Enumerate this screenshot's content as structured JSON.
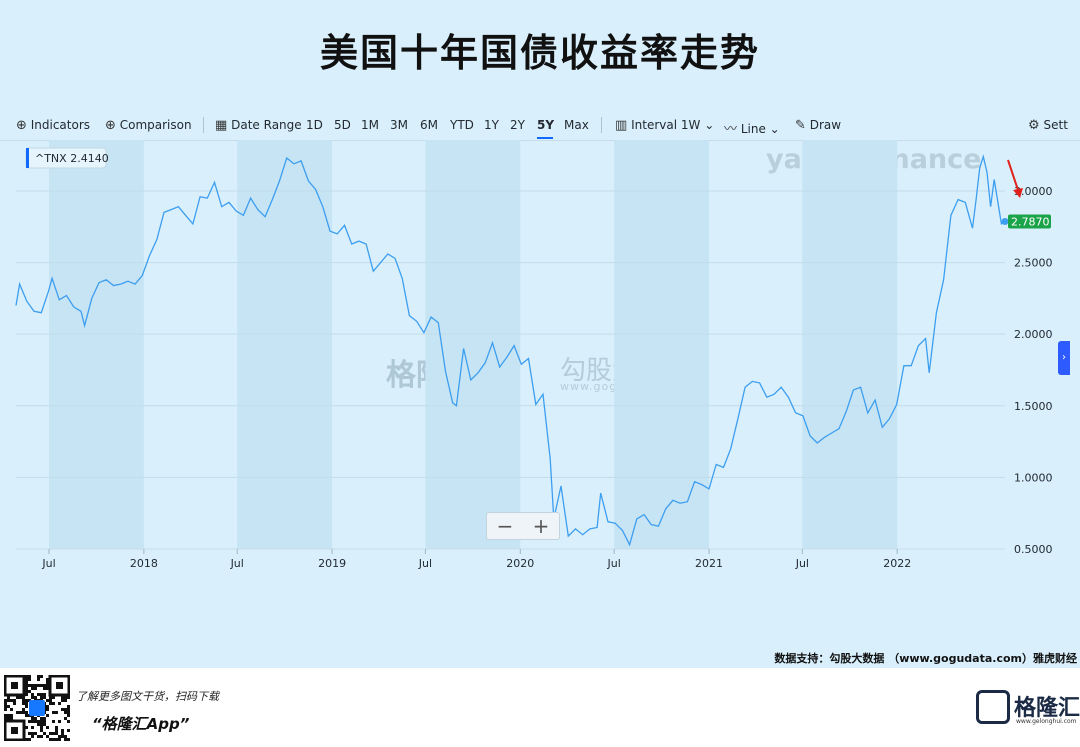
{
  "page": {
    "title": "美国十年国债收益率走势",
    "source_note": "数据支持：勾股大数据 （www.gogudata.com）雅虎财经",
    "promo_line1": "了解更多图文干货，扫码下载",
    "promo_line2": "“格隆汇App”",
    "logo_text": "格隆汇",
    "logo_url": "www.gelonghui.com",
    "watermark_gogu_left": "格隆汇",
    "watermark_gogu_right": "勾股大数据",
    "watermark_gogu_url": "www.gogudata.com",
    "watermark_yahoo": "yahoo!finance"
  },
  "toolbar": {
    "indicators": "Indicators",
    "comparison": "Comparison",
    "date_range": "Date Range",
    "ranges": [
      "1D",
      "5D",
      "1M",
      "3M",
      "6M",
      "YTD",
      "1Y",
      "2Y",
      "5Y",
      "Max"
    ],
    "active_range": "5Y",
    "interval": "Interval",
    "interval_value": "1W",
    "line": "Line",
    "draw": "Draw",
    "settings": "Sett"
  },
  "colors": {
    "background": "#d9f0fc",
    "line": "#3d9ef0",
    "band": "#c6e4f4",
    "last_price_badge": "#1ba34a",
    "arrow": "#e0201b",
    "ticker_marker": "#0f69ff"
  },
  "chart_data": {
    "type": "line",
    "title": "美国十年国债收益率走势",
    "ticker_label": "^TNX 2.4140",
    "last_price_label": "2.7870",
    "xlabel": "",
    "ylabel": "",
    "ylim": [
      0.5,
      3.3
    ],
    "y_ticks": [
      "0.5000",
      "1.0000",
      "1.5000",
      "2.0000",
      "2.5000",
      "3.0000"
    ],
    "x_tick_labels": [
      {
        "label": "Jul",
        "date": "2017-07-01"
      },
      {
        "label": "2018",
        "date": "2018-01-01"
      },
      {
        "label": "Jul",
        "date": "2018-07-01"
      },
      {
        "label": "2019",
        "date": "2019-01-01"
      },
      {
        "label": "Jul",
        "date": "2019-07-01"
      },
      {
        "label": "2020",
        "date": "2020-01-01"
      },
      {
        "label": "Jul",
        "date": "2020-07-01"
      },
      {
        "label": "2021",
        "date": "2021-01-01"
      },
      {
        "label": "Jul",
        "date": "2021-07-01"
      },
      {
        "label": "2022",
        "date": "2022-01-01"
      }
    ],
    "grid": true,
    "series": [
      {
        "points": [
          [
            "2017-04-28",
            2.2
          ],
          [
            "2017-05-05",
            2.35
          ],
          [
            "2017-05-19",
            2.23
          ],
          [
            "2017-06-02",
            2.16
          ],
          [
            "2017-06-16",
            2.15
          ],
          [
            "2017-06-30",
            2.3
          ],
          [
            "2017-07-07",
            2.39
          ],
          [
            "2017-07-21",
            2.24
          ],
          [
            "2017-08-04",
            2.27
          ],
          [
            "2017-08-18",
            2.19
          ],
          [
            "2017-09-01",
            2.16
          ],
          [
            "2017-09-08",
            2.06
          ],
          [
            "2017-09-22",
            2.25
          ],
          [
            "2017-10-06",
            2.36
          ],
          [
            "2017-10-20",
            2.38
          ],
          [
            "2017-11-03",
            2.34
          ],
          [
            "2017-11-17",
            2.35
          ],
          [
            "2017-12-01",
            2.37
          ],
          [
            "2017-12-15",
            2.35
          ],
          [
            "2017-12-29",
            2.41
          ],
          [
            "2018-01-12",
            2.55
          ],
          [
            "2018-01-26",
            2.66
          ],
          [
            "2018-02-09",
            2.85
          ],
          [
            "2018-02-23",
            2.87
          ],
          [
            "2018-03-09",
            2.89
          ],
          [
            "2018-03-23",
            2.83
          ],
          [
            "2018-04-06",
            2.77
          ],
          [
            "2018-04-20",
            2.96
          ],
          [
            "2018-05-04",
            2.95
          ],
          [
            "2018-05-18",
            3.06
          ],
          [
            "2018-06-01",
            2.89
          ],
          [
            "2018-06-15",
            2.92
          ],
          [
            "2018-06-29",
            2.86
          ],
          [
            "2018-07-13",
            2.83
          ],
          [
            "2018-07-27",
            2.95
          ],
          [
            "2018-08-10",
            2.87
          ],
          [
            "2018-08-24",
            2.82
          ],
          [
            "2018-09-07",
            2.94
          ],
          [
            "2018-09-21",
            3.07
          ],
          [
            "2018-10-05",
            3.23
          ],
          [
            "2018-10-19",
            3.19
          ],
          [
            "2018-11-02",
            3.21
          ],
          [
            "2018-11-16",
            3.07
          ],
          [
            "2018-11-30",
            3.01
          ],
          [
            "2018-12-14",
            2.89
          ],
          [
            "2018-12-28",
            2.72
          ],
          [
            "2019-01-11",
            2.7
          ],
          [
            "2019-01-25",
            2.76
          ],
          [
            "2019-02-08",
            2.63
          ],
          [
            "2019-02-22",
            2.65
          ],
          [
            "2019-03-08",
            2.63
          ],
          [
            "2019-03-22",
            2.44
          ],
          [
            "2019-04-05",
            2.5
          ],
          [
            "2019-04-19",
            2.56
          ],
          [
            "2019-05-03",
            2.53
          ],
          [
            "2019-05-17",
            2.39
          ],
          [
            "2019-05-31",
            2.13
          ],
          [
            "2019-06-14",
            2.09
          ],
          [
            "2019-06-28",
            2.01
          ],
          [
            "2019-07-12",
            2.12
          ],
          [
            "2019-07-26",
            2.08
          ],
          [
            "2019-08-09",
            1.74
          ],
          [
            "2019-08-23",
            1.52
          ],
          [
            "2019-08-30",
            1.5
          ],
          [
            "2019-09-13",
            1.9
          ],
          [
            "2019-09-27",
            1.68
          ],
          [
            "2019-10-11",
            1.73
          ],
          [
            "2019-10-25",
            1.8
          ],
          [
            "2019-11-08",
            1.94
          ],
          [
            "2019-11-22",
            1.77
          ],
          [
            "2019-12-06",
            1.84
          ],
          [
            "2019-12-20",
            1.92
          ],
          [
            "2020-01-03",
            1.79
          ],
          [
            "2020-01-17",
            1.83
          ],
          [
            "2020-01-31",
            1.51
          ],
          [
            "2020-02-14",
            1.58
          ],
          [
            "2020-02-28",
            1.13
          ],
          [
            "2020-03-06",
            0.71
          ],
          [
            "2020-03-20",
            0.94
          ],
          [
            "2020-04-03",
            0.59
          ],
          [
            "2020-04-17",
            0.64
          ],
          [
            "2020-05-01",
            0.6
          ],
          [
            "2020-05-15",
            0.64
          ],
          [
            "2020-05-29",
            0.65
          ],
          [
            "2020-06-05",
            0.89
          ],
          [
            "2020-06-19",
            0.69
          ],
          [
            "2020-07-03",
            0.68
          ],
          [
            "2020-07-17",
            0.63
          ],
          [
            "2020-07-31",
            0.53
          ],
          [
            "2020-08-14",
            0.71
          ],
          [
            "2020-08-28",
            0.74
          ],
          [
            "2020-09-11",
            0.67
          ],
          [
            "2020-09-25",
            0.66
          ],
          [
            "2020-10-09",
            0.78
          ],
          [
            "2020-10-23",
            0.84
          ],
          [
            "2020-11-06",
            0.82
          ],
          [
            "2020-11-20",
            0.83
          ],
          [
            "2020-12-04",
            0.97
          ],
          [
            "2020-12-18",
            0.95
          ],
          [
            "2021-01-01",
            0.92
          ],
          [
            "2021-01-15",
            1.09
          ],
          [
            "2021-01-29",
            1.07
          ],
          [
            "2021-02-12",
            1.2
          ],
          [
            "2021-02-26",
            1.41
          ],
          [
            "2021-03-12",
            1.63
          ],
          [
            "2021-03-26",
            1.67
          ],
          [
            "2021-04-09",
            1.66
          ],
          [
            "2021-04-23",
            1.56
          ],
          [
            "2021-05-07",
            1.58
          ],
          [
            "2021-05-21",
            1.63
          ],
          [
            "2021-06-04",
            1.56
          ],
          [
            "2021-06-18",
            1.45
          ],
          [
            "2021-07-02",
            1.43
          ],
          [
            "2021-07-16",
            1.29
          ],
          [
            "2021-07-30",
            1.24
          ],
          [
            "2021-08-13",
            1.28
          ],
          [
            "2021-08-27",
            1.31
          ],
          [
            "2021-09-10",
            1.34
          ],
          [
            "2021-09-24",
            1.46
          ],
          [
            "2021-10-08",
            1.61
          ],
          [
            "2021-10-22",
            1.63
          ],
          [
            "2021-11-05",
            1.45
          ],
          [
            "2021-11-19",
            1.54
          ],
          [
            "2021-12-03",
            1.35
          ],
          [
            "2021-12-17",
            1.41
          ],
          [
            "2021-12-31",
            1.51
          ],
          [
            "2022-01-14",
            1.78
          ],
          [
            "2022-01-28",
            1.78
          ],
          [
            "2022-02-11",
            1.92
          ],
          [
            "2022-02-25",
            1.97
          ],
          [
            "2022-03-04",
            1.73
          ],
          [
            "2022-03-18",
            2.15
          ],
          [
            "2022-04-01",
            2.38
          ],
          [
            "2022-04-15",
            2.83
          ],
          [
            "2022-04-29",
            2.94
          ],
          [
            "2022-05-13",
            2.92
          ],
          [
            "2022-05-27",
            2.74
          ],
          [
            "2022-06-03",
            2.94
          ],
          [
            "2022-06-10",
            3.16
          ],
          [
            "2022-06-17",
            3.24
          ],
          [
            "2022-06-24",
            3.13
          ],
          [
            "2022-07-01",
            2.89
          ],
          [
            "2022-07-08",
            3.08
          ],
          [
            "2022-07-22",
            2.77
          ],
          [
            "2022-07-29",
            2.787
          ]
        ]
      }
    ]
  }
}
